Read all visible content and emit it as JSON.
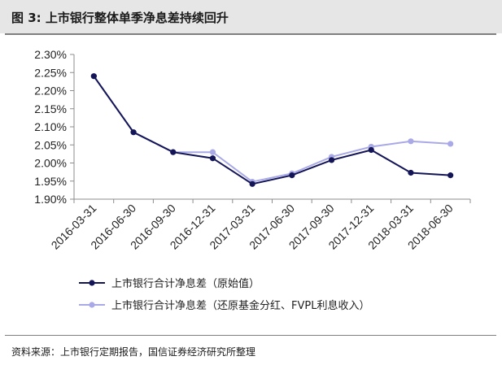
{
  "figure": {
    "title": "图 3: 上市银行整体单季净息差持续回升",
    "source": "资料来源：上市银行定期报告，国信证券经济研究所整理"
  },
  "chart_data": {
    "type": "line",
    "x": [
      "2016-03-31",
      "2016-06-30",
      "2016-09-30",
      "2016-12-31",
      "2017-03-31",
      "2017-06-30",
      "2017-09-30",
      "2017-12-31",
      "2018-03-31",
      "2018-06-30"
    ],
    "yticks": [
      "1.90%",
      "1.95%",
      "2.00%",
      "2.05%",
      "2.10%",
      "2.15%",
      "2.20%",
      "2.25%",
      "2.30%"
    ],
    "ylim": [
      1.9,
      2.3
    ],
    "grid": false,
    "legend_position": "bottom",
    "series": [
      {
        "name": "上市银行合计净息差（原始值）",
        "color": "#131557",
        "values": [
          2.24,
          2.085,
          2.03,
          2.013,
          1.942,
          1.966,
          2.008,
          2.036,
          1.973,
          1.966
        ]
      },
      {
        "name": "上市银行合计净息差（还原基金分红、FVPL利息收入）",
        "color": "#a9a9e8",
        "values": [
          2.24,
          2.085,
          2.03,
          2.03,
          1.948,
          1.971,
          2.017,
          2.045,
          2.06,
          2.053
        ]
      }
    ]
  }
}
